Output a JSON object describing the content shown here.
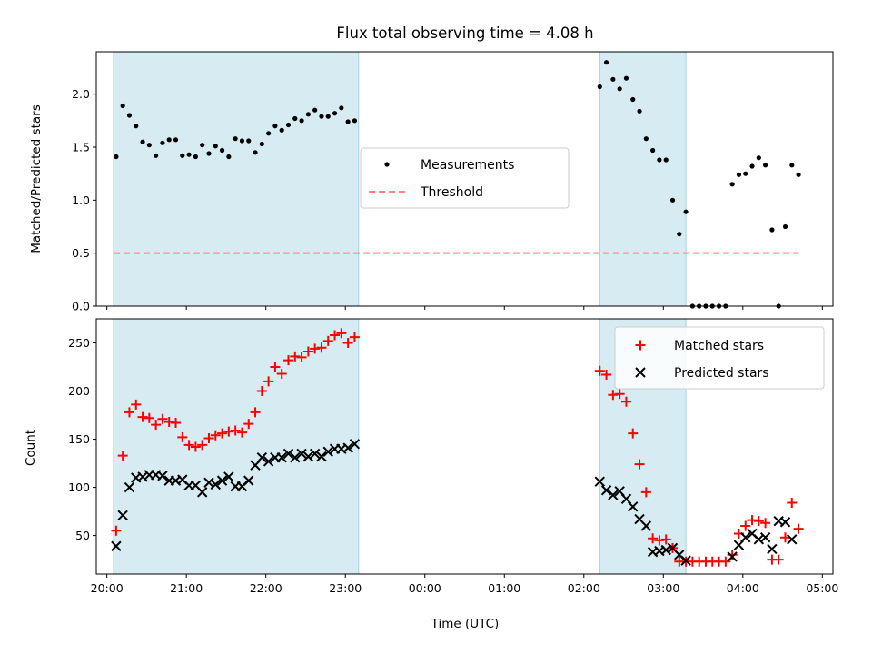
{
  "chart_data": [
    {
      "type": "scatter",
      "title": "Flux total observing time = 4.08 h",
      "xlabel": "",
      "ylabel": "Matched/Predicted stars",
      "xlim": [
        "19:52",
        "05:08"
      ],
      "ylim": [
        0,
        2.4
      ],
      "yticks": [
        "0.0",
        "0.5",
        "1.0",
        "1.5",
        "2.0"
      ],
      "shaded_intervals": [
        [
          "20:05",
          "23:10"
        ],
        [
          "02:12",
          "03:17"
        ]
      ],
      "threshold": {
        "name": "Threshold",
        "value": 0.5,
        "x_range": [
          "20:05",
          "04:42"
        ],
        "color": "#ff8080"
      },
      "legend": {
        "placement": "center-right",
        "entries": [
          "Measurements",
          "Threshold"
        ]
      },
      "series": [
        {
          "name": "Measurements",
          "marker": "dot",
          "color": "#000000",
          "points": [
            [
              "20:07",
              1.41
            ],
            [
              "20:12",
              1.89
            ],
            [
              "20:17",
              1.8
            ],
            [
              "20:22",
              1.7
            ],
            [
              "20:27",
              1.55
            ],
            [
              "20:32",
              1.52
            ],
            [
              "20:37",
              1.42
            ],
            [
              "20:42",
              1.54
            ],
            [
              "20:47",
              1.57
            ],
            [
              "20:52",
              1.57
            ],
            [
              "20:57",
              1.42
            ],
            [
              "21:02",
              1.43
            ],
            [
              "21:07",
              1.41
            ],
            [
              "21:12",
              1.52
            ],
            [
              "21:17",
              1.44
            ],
            [
              "21:22",
              1.51
            ],
            [
              "21:27",
              1.47
            ],
            [
              "21:32",
              1.41
            ],
            [
              "21:37",
              1.58
            ],
            [
              "21:42",
              1.56
            ],
            [
              "21:47",
              1.56
            ],
            [
              "21:52",
              1.45
            ],
            [
              "21:57",
              1.53
            ],
            [
              "22:02",
              1.63
            ],
            [
              "22:07",
              1.7
            ],
            [
              "22:12",
              1.66
            ],
            [
              "22:17",
              1.71
            ],
            [
              "22:22",
              1.77
            ],
            [
              "22:27",
              1.75
            ],
            [
              "22:32",
              1.81
            ],
            [
              "22:37",
              1.85
            ],
            [
              "22:42",
              1.79
            ],
            [
              "22:47",
              1.79
            ],
            [
              "22:52",
              1.82
            ],
            [
              "22:57",
              1.87
            ],
            [
              "23:02",
              1.74
            ],
            [
              "23:07",
              1.75
            ],
            [
              "02:12",
              2.07
            ],
            [
              "02:17",
              2.3
            ],
            [
              "02:22",
              2.14
            ],
            [
              "02:27",
              2.05
            ],
            [
              "02:32",
              2.15
            ],
            [
              "02:37",
              1.95
            ],
            [
              "02:42",
              1.84
            ],
            [
              "02:47",
              1.58
            ],
            [
              "02:52",
              1.47
            ],
            [
              "02:57",
              1.38
            ],
            [
              "03:02",
              1.38
            ],
            [
              "03:07",
              1.0
            ],
            [
              "03:12",
              0.68
            ],
            [
              "03:17",
              0.89
            ],
            [
              "03:22",
              0.0
            ],
            [
              "03:27",
              0.0
            ],
            [
              "03:32",
              0.0
            ],
            [
              "03:37",
              0.0
            ],
            [
              "03:42",
              0.0
            ],
            [
              "03:47",
              0.0
            ],
            [
              "03:52",
              1.15
            ],
            [
              "03:57",
              1.24
            ],
            [
              "04:02",
              1.25
            ],
            [
              "04:07",
              1.32
            ],
            [
              "04:12",
              1.4
            ],
            [
              "04:17",
              1.33
            ],
            [
              "04:22",
              0.72
            ],
            [
              "04:27",
              0.0
            ],
            [
              "04:32",
              0.75
            ],
            [
              "04:37",
              1.33
            ],
            [
              "04:42",
              1.24
            ]
          ]
        }
      ]
    },
    {
      "type": "scatter",
      "title": "",
      "xlabel": "Time (UTC)",
      "ylabel": "Count",
      "xlim": [
        "19:52",
        "05:08"
      ],
      "ylim": [
        10,
        275
      ],
      "yticks": [
        "50",
        "100",
        "150",
        "200",
        "250"
      ],
      "xticks": [
        "20:00",
        "21:00",
        "22:00",
        "23:00",
        "00:00",
        "01:00",
        "02:00",
        "03:00",
        "04:00",
        "05:00"
      ],
      "shaded_intervals": [
        [
          "20:05",
          "23:10"
        ],
        [
          "02:12",
          "03:17"
        ]
      ],
      "legend": {
        "placement": "top-right",
        "entries": [
          "Matched stars",
          "Predicted stars"
        ]
      },
      "series": [
        {
          "name": "Matched stars",
          "marker": "plus",
          "color": "#ff0000",
          "points": [
            [
              "20:07",
              55
            ],
            [
              "20:12",
              133
            ],
            [
              "20:17",
              178
            ],
            [
              "20:22",
              186
            ],
            [
              "20:27",
              173
            ],
            [
              "20:32",
              172
            ],
            [
              "20:37",
              165
            ],
            [
              "20:42",
              171
            ],
            [
              "20:47",
              168
            ],
            [
              "20:52",
              167
            ],
            [
              "20:57",
              152
            ],
            [
              "21:02",
              144
            ],
            [
              "21:07",
              142
            ],
            [
              "21:12",
              144
            ],
            [
              "21:17",
              151
            ],
            [
              "21:22",
              154
            ],
            [
              "21:27",
              156
            ],
            [
              "21:32",
              158
            ],
            [
              "21:37",
              159
            ],
            [
              "21:42",
              157
            ],
            [
              "21:47",
              166
            ],
            [
              "21:52",
              178
            ],
            [
              "21:57",
              200
            ],
            [
              "22:02",
              210
            ],
            [
              "22:07",
              225
            ],
            [
              "22:12",
              218
            ],
            [
              "22:17",
              232
            ],
            [
              "22:22",
              236
            ],
            [
              "22:27",
              235
            ],
            [
              "22:32",
              241
            ],
            [
              "22:37",
              244
            ],
            [
              "22:42",
              245
            ],
            [
              "22:47",
              252
            ],
            [
              "22:52",
              258
            ],
            [
              "22:57",
              260
            ],
            [
              "23:02",
              250
            ],
            [
              "23:07",
              256
            ],
            [
              "02:12",
              221
            ],
            [
              "02:17",
              217
            ],
            [
              "02:22",
              196
            ],
            [
              "02:27",
              197
            ],
            [
              "02:32",
              189
            ],
            [
              "02:37",
              156
            ],
            [
              "02:42",
              124
            ],
            [
              "02:47",
              95
            ],
            [
              "02:52",
              47
            ],
            [
              "02:57",
              45
            ],
            [
              "03:02",
              46
            ],
            [
              "03:07",
              37
            ],
            [
              "03:12",
              23
            ],
            [
              "03:17",
              23
            ],
            [
              "03:22",
              23
            ],
            [
              "03:27",
              23
            ],
            [
              "03:32",
              23
            ],
            [
              "03:37",
              23
            ],
            [
              "03:42",
              23
            ],
            [
              "03:47",
              23
            ],
            [
              "03:52",
              30
            ],
            [
              "03:57",
              52
            ],
            [
              "04:02",
              60
            ],
            [
              "04:07",
              66
            ],
            [
              "04:12",
              65
            ],
            [
              "04:17",
              63
            ],
            [
              "04:22",
              25
            ],
            [
              "04:27",
              25
            ],
            [
              "04:32",
              48
            ],
            [
              "04:37",
              84
            ],
            [
              "04:42",
              57
            ]
          ]
        },
        {
          "name": "Predicted stars",
          "marker": "x",
          "color": "#000000",
          "points": [
            [
              "20:07",
              39
            ],
            [
              "20:12",
              71
            ],
            [
              "20:17",
              100
            ],
            [
              "20:22",
              110
            ],
            [
              "20:27",
              111
            ],
            [
              "20:32",
              113
            ],
            [
              "20:37",
              113
            ],
            [
              "20:42",
              112
            ],
            [
              "20:47",
              107
            ],
            [
              "20:52",
              107
            ],
            [
              "20:57",
              108
            ],
            [
              "21:02",
              102
            ],
            [
              "21:07",
              102
            ],
            [
              "21:12",
              95
            ],
            [
              "21:17",
              105
            ],
            [
              "21:22",
              103
            ],
            [
              "21:27",
              107
            ],
            [
              "21:32",
              111
            ],
            [
              "21:37",
              101
            ],
            [
              "21:42",
              101
            ],
            [
              "21:47",
              107
            ],
            [
              "21:52",
              123
            ],
            [
              "21:57",
              131
            ],
            [
              "22:02",
              127
            ],
            [
              "22:07",
              131
            ],
            [
              "22:12",
              131
            ],
            [
              "22:17",
              135
            ],
            [
              "22:22",
              131
            ],
            [
              "22:27",
              135
            ],
            [
              "22:32",
              132
            ],
            [
              "22:37",
              135
            ],
            [
              "22:42",
              132
            ],
            [
              "22:47",
              137
            ],
            [
              "22:52",
              140
            ],
            [
              "22:57",
              140
            ],
            [
              "23:02",
              141
            ],
            [
              "23:07",
              145
            ],
            [
              "02:12",
              106
            ],
            [
              "02:17",
              97
            ],
            [
              "02:22",
              92
            ],
            [
              "02:27",
              96
            ],
            [
              "02:32",
              88
            ],
            [
              "02:37",
              80
            ],
            [
              "02:42",
              67
            ],
            [
              "02:47",
              60
            ],
            [
              "02:52",
              33
            ],
            [
              "02:57",
              34
            ],
            [
              "03:02",
              35
            ],
            [
              "03:07",
              37
            ],
            [
              "03:12",
              30
            ],
            [
              "03:17",
              24
            ],
            [
              "03:52",
              28
            ],
            [
              "03:57",
              40
            ],
            [
              "04:02",
              48
            ],
            [
              "04:07",
              52
            ],
            [
              "04:12",
              46
            ],
            [
              "04:17",
              48
            ],
            [
              "04:22",
              36
            ],
            [
              "04:27",
              65
            ],
            [
              "04:32",
              64
            ],
            [
              "04:37",
              46
            ]
          ]
        }
      ]
    }
  ]
}
